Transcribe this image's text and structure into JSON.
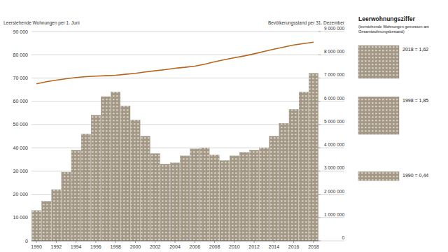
{
  "chart_data": {
    "type": "bar",
    "categories": [
      "1990",
      null,
      "1992",
      null,
      "1994",
      null,
      "1996",
      null,
      "1998",
      null,
      "2000",
      null,
      "2002",
      null,
      "2004",
      null,
      "2006",
      null,
      "2008",
      null,
      "2010",
      null,
      "2012",
      null,
      "2014",
      null,
      "2016",
      null,
      "2018"
    ],
    "series": [
      {
        "name": "Leerstehende Wohnungen per 1. Juni",
        "type": "bar",
        "color": "#a39886",
        "values": [
          13000,
          17000,
          22000,
          29500,
          39000,
          46000,
          54000,
          62000,
          64000,
          58000,
          52000,
          45000,
          37500,
          33000,
          33500,
          36500,
          39500,
          40000,
          37000,
          34500,
          36500,
          38000,
          39000,
          40000,
          45000,
          50500,
          56500,
          64000,
          72000
        ]
      },
      {
        "name": "Bevölkerungsstand per 31. Dezember",
        "type": "line",
        "axis": "y2",
        "color": "#b5651d",
        "values": [
          6750000,
          6840000,
          6910000,
          6970000,
          7020000,
          7060000,
          7080000,
          7100000,
          7120000,
          7160000,
          7200000,
          7260000,
          7310000,
          7360000,
          7420000,
          7460000,
          7510000,
          7590000,
          7700000,
          7790000,
          7870000,
          7950000,
          8040000,
          8140000,
          8240000,
          8330000,
          8420000,
          8480000,
          8540000
        ]
      }
    ],
    "ylim": [
      0,
      90000
    ],
    "yticks": [
      0,
      {
        "value": 10000,
        "label": "10 000"
      },
      {
        "value": 20000,
        "label": "20 000"
      },
      {
        "value": 30000,
        "label": "30 000"
      },
      {
        "value": 40000,
        "label": "40 000"
      },
      {
        "value": 50000,
        "label": "50 000"
      },
      {
        "value": 60000,
        "label": "60 000"
      },
      {
        "value": 70000,
        "label": "70 000"
      },
      {
        "value": 80000,
        "label": "80 000"
      },
      {
        "value": 90000,
        "label": "90 000"
      }
    ],
    "y2lim": [
      0,
      9000000
    ],
    "y2ticks": [
      0,
      {
        "value": 1000000,
        "label": "1 000 000"
      },
      {
        "value": 2000000,
        "label": "2 000 000"
      },
      {
        "value": 3000000,
        "label": "3 000 000"
      },
      {
        "value": 4000000,
        "label": "4 000 000"
      },
      {
        "value": 5000000,
        "label": "5 000 000"
      },
      {
        "value": 6000000,
        "label": "6 000 000"
      },
      {
        "value": 7000000,
        "label": "7 000 000"
      },
      {
        "value": 8000000,
        "label": "8 000 000"
      },
      {
        "value": 9000000,
        "label": "9 000 000"
      }
    ],
    "grid": true
  },
  "side_panel": {
    "title": "Leerwohnungsziffer",
    "subtitle": "(leerstehende Wohnungen gemessen am Gesamtwohnungsbestand)",
    "items": [
      {
        "label": "2018 = 1,62",
        "value": 1.62
      },
      {
        "label": "1998 = 1,85",
        "value": 1.85
      },
      {
        "label": "1990 = 0,44",
        "value": 0.44
      }
    ]
  }
}
